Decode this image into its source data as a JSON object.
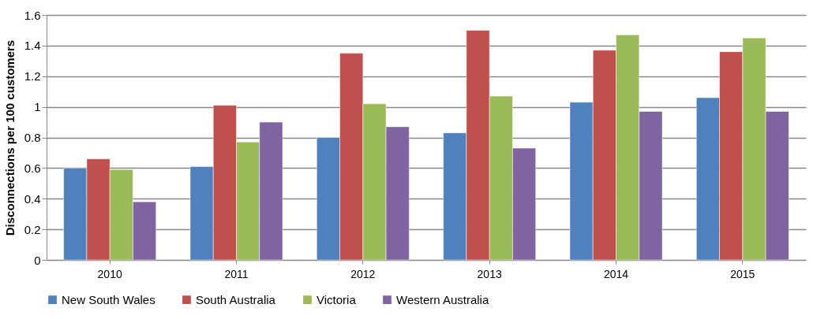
{
  "chart_data": {
    "type": "bar",
    "ylabel": "Disconnections per 100 customers",
    "categories": [
      "2010",
      "2011",
      "2012",
      "2013",
      "2014",
      "2015"
    ],
    "series": [
      {
        "name": "New South Wales",
        "color": "#4f81bd",
        "values": [
          0.6,
          0.61,
          0.8,
          0.83,
          1.03,
          1.06
        ]
      },
      {
        "name": "South Australia",
        "color": "#c0504d",
        "values": [
          0.66,
          1.01,
          1.35,
          1.5,
          1.37,
          1.36
        ]
      },
      {
        "name": "Victoria",
        "color": "#9bbb59",
        "values": [
          0.59,
          0.77,
          1.02,
          1.07,
          1.47,
          1.45
        ]
      },
      {
        "name": "Western Australia",
        "color": "#8064a2",
        "values": [
          0.38,
          0.9,
          0.87,
          0.73,
          0.97,
          0.97
        ]
      }
    ],
    "ylim": [
      0,
      1.6
    ],
    "yticks": [
      0,
      0.2,
      0.4,
      0.6,
      0.8,
      1,
      1.2,
      1.4,
      1.6
    ],
    "grid": "y",
    "legend": "bottom"
  }
}
